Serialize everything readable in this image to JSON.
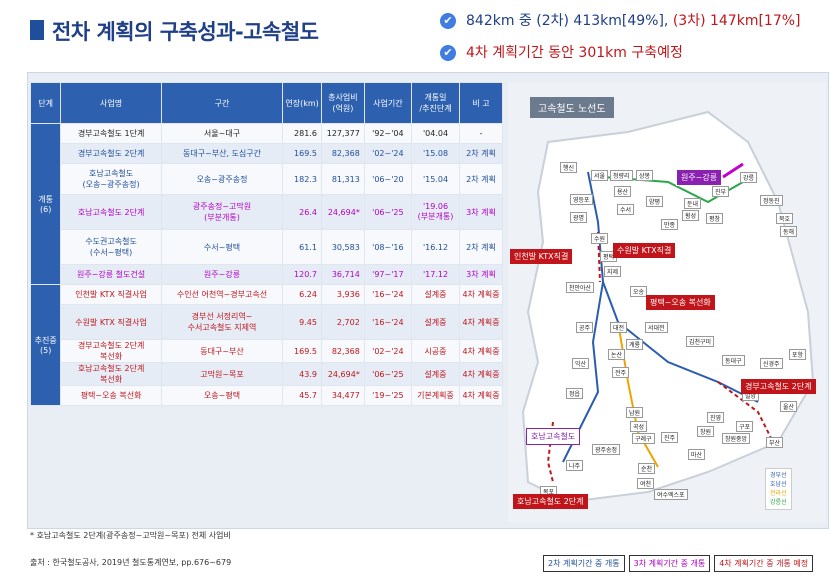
{
  "title": "전차 계획의 구축성과-고속철도",
  "bullets": [
    {
      "parts": [
        "842km 중 (2차) 413km[49%], ",
        "(3차) 147km[17%]"
      ]
    },
    {
      "text": "4차 계획기간 동안 301km 구축예정"
    }
  ],
  "table": {
    "headers": [
      "단계",
      "사업명",
      "구간",
      "연장(km)",
      "총사업비\n(억원)",
      "사업기간",
      "개통일\n/추진단계",
      "비 고"
    ],
    "groups": [
      {
        "label": "개통\n(6)"
      },
      {
        "label": "추진중\n(5)"
      }
    ],
    "rows": [
      {
        "name": "경부고속철도 1단계",
        "section": "서울~대구",
        "len": "281.6",
        "cost": "127,377",
        "period": "'92~'04",
        "open": "'04.04",
        "note": "-",
        "cls": "c0"
      },
      {
        "name": "경부고속철도 2단계",
        "section": "동대구~부산, 도심구간",
        "len": "169.5",
        "cost": "82,368",
        "period": "'02~'24",
        "open": "'15.08",
        "note": "2차 계획",
        "cls": "c2"
      },
      {
        "name": "호남고속철도\n(오송~광주송정)",
        "section": "오송~광주송정",
        "len": "182.3",
        "cost": "81,313",
        "period": "'06~'20",
        "open": "'15.04",
        "note": "2차 계획",
        "cls": "c2"
      },
      {
        "name": "호남고속철도 2단계",
        "section": "광주송정~고막원\n(부분개통)",
        "len": "26.4",
        "cost": "24,694*",
        "period": "'06~'25",
        "open": "'19.06\n(부분개통)",
        "note": "3차 계획",
        "cls": "c3"
      },
      {
        "name": "수도권고속철도\n(수서~평택)",
        "section": "수서~평택",
        "len": "61.1",
        "cost": "30,583",
        "period": "'08~'16",
        "open": "'16.12",
        "note": "2차 계획",
        "cls": "c2"
      },
      {
        "name": "원주~강릉 철도건설",
        "section": "원주~강릉",
        "len": "120.7",
        "cost": "36,714",
        "period": "'97~'17",
        "open": "'17.12",
        "note": "3차 계획",
        "cls": "c3"
      },
      {
        "name": "인천발 KTX 직결사업",
        "section": "수인선 어천역~경부고속선",
        "len": "6.24",
        "cost": "3,936",
        "period": "'16~'24",
        "open": "설계중",
        "note": "4차 계획중",
        "cls": "c4"
      },
      {
        "name": "수원발 KTX 직결사업",
        "section": "경부선 서정리역~\n수서고속철도 지제역",
        "len": "9.45",
        "cost": "2,702",
        "period": "'16~'24",
        "open": "설계중",
        "note": "4차 계획중",
        "cls": "c4"
      },
      {
        "name": "경부고속철도 2단계\n복선화",
        "section": "동대구~부산",
        "len": "169.5",
        "cost": "82,368",
        "period": "'02~'24",
        "open": "시공중",
        "note": "4차 계획중",
        "cls": "c4"
      },
      {
        "name": "호남고속철도 2단계\n복선화",
        "section": "고막원~목포",
        "len": "43.9",
        "cost": "24,694*",
        "period": "'06~'25",
        "open": "설계중",
        "note": "4차 계획중",
        "cls": "c4"
      },
      {
        "name": "평택~오송 복선화",
        "section": "오송~평택",
        "len": "45.7",
        "cost": "34,477",
        "period": "'19~'25",
        "open": "기본계획중",
        "note": "4차 계획중",
        "cls": "c4"
      }
    ]
  },
  "footnote": "* 호남고속철도 2단계(광주송정~고막원~목포) 전체 사업비",
  "source": "출처 : 한국철도공사, 2019년 철도통계연보, pp.676~679",
  "map": {
    "title": "고속철도 노선도",
    "boxes": [
      "원주~강릉",
      "인천발 KTX직결",
      "수원발 KTX직결",
      "평택~오송 복선화",
      "경부고속철도 2단계",
      "호남고속철도",
      "호남고속철도 2단계"
    ],
    "stations": [
      "행신",
      "서울",
      "청량리",
      "상봉",
      "영등포",
      "용산",
      "광명",
      "수서",
      "양평",
      "만종",
      "횡성",
      "둔내",
      "평창",
      "진부",
      "강릉",
      "정동진",
      "묵호",
      "동해",
      "수원",
      "평택",
      "지제",
      "천안아산",
      "오송",
      "공주",
      "대전",
      "서대전",
      "계룡",
      "논산",
      "익산",
      "김천구미",
      "동대구",
      "신경주",
      "포항",
      "울산",
      "밀양",
      "진영",
      "창원",
      "마산",
      "진주",
      "구포",
      "부산",
      "창원중앙",
      "정읍",
      "광주송정",
      "나주",
      "목포",
      "순천",
      "여천",
      "여수엑스포",
      "남원",
      "곡성",
      "구례구",
      "전주"
    ],
    "line_key": [
      "경부선",
      "호남선",
      "전라선",
      "강릉선"
    ]
  },
  "legend": [
    "2차 계획기간 중 개통",
    "3차 계획기간 중 개통",
    "4차 계획기간 중 개통 예정"
  ]
}
